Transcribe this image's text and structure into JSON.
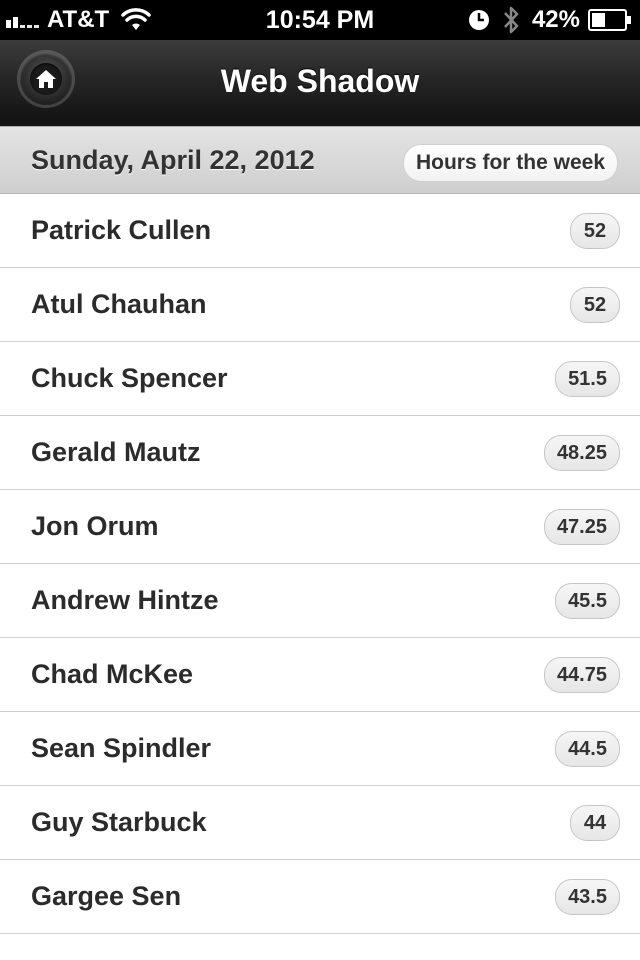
{
  "status_bar": {
    "carrier": "AT&T",
    "time": "10:54 PM",
    "battery_percent": "42%",
    "signal_bars_filled": 2,
    "signal_bars_total": 5,
    "battery_level": 0.42,
    "icons": [
      "signal-icon",
      "wifi-icon",
      "clock-icon",
      "bluetooth-icon",
      "battery-icon"
    ]
  },
  "header": {
    "title": "Web Shadow",
    "home_icon": "home-icon"
  },
  "date_bar": {
    "date": "Sunday, April 22, 2012",
    "hours_label": "Hours for the week"
  },
  "employees": [
    {
      "name": "Patrick Cullen",
      "hours": "52"
    },
    {
      "name": "Atul Chauhan",
      "hours": "52"
    },
    {
      "name": "Chuck Spencer",
      "hours": "51.5"
    },
    {
      "name": "Gerald Mautz",
      "hours": "48.25"
    },
    {
      "name": "Jon Orum",
      "hours": "47.25"
    },
    {
      "name": "Andrew Hintze",
      "hours": "45.5"
    },
    {
      "name": "Chad McKee",
      "hours": "44.75"
    },
    {
      "name": "Sean Spindler",
      "hours": "44.5"
    },
    {
      "name": "Guy Starbuck",
      "hours": "44"
    },
    {
      "name": "Gargee Sen",
      "hours": "43.5"
    }
  ],
  "colors": {
    "header_dark": "#1a1a1a",
    "date_bar": "#d6d6d6",
    "text": "#2b2b2b",
    "divider": "#cfcfcf"
  }
}
